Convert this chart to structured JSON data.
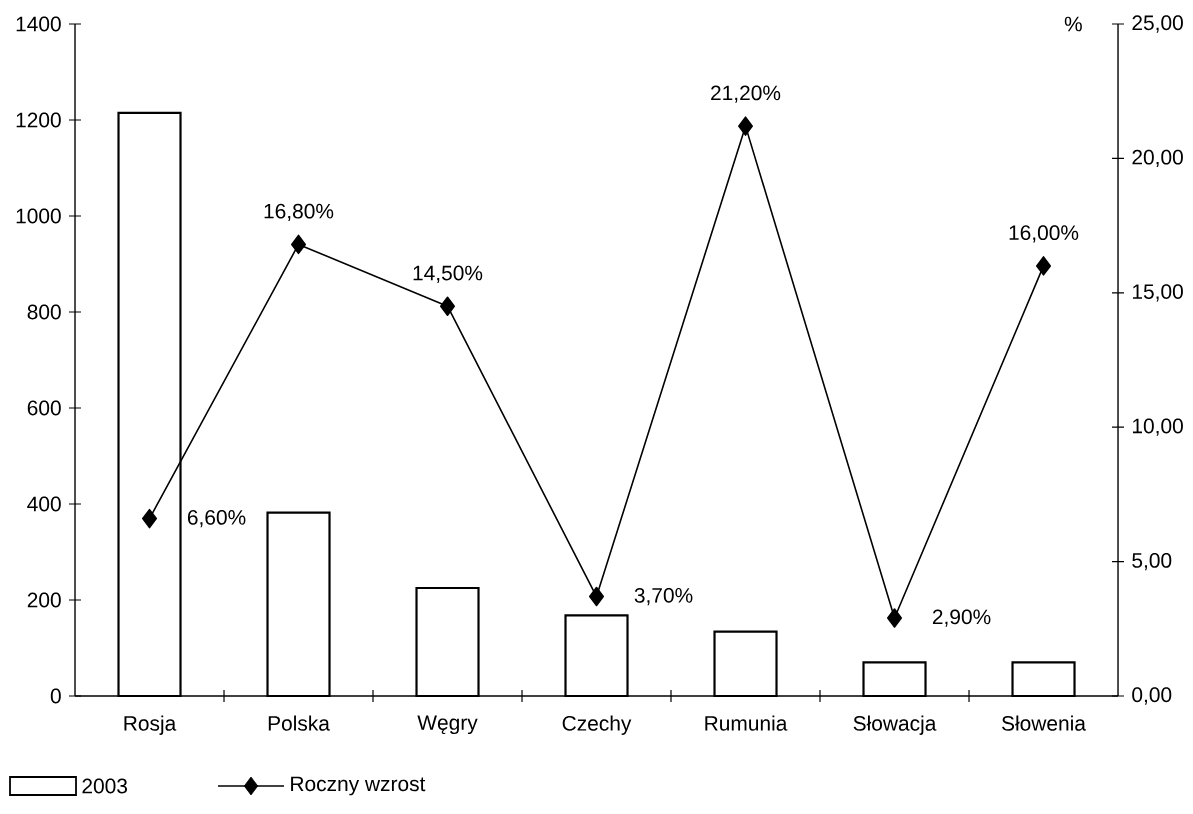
{
  "chart_data": {
    "type": "bar",
    "categories": [
      "Rosja",
      "Polska",
      "Węgry",
      "Czechy",
      "Rumunia",
      "Słowacja",
      "Słowenia"
    ],
    "series": [
      {
        "name": "2003",
        "color": "#ffffff",
        "values": [
          1215,
          382,
          225,
          168,
          134,
          70,
          70
        ]
      },
      {
        "name": "Roczny wzrost",
        "type": "line",
        "axis": "y2",
        "color": "#000000",
        "values": [
          6.6,
          16.8,
          14.5,
          3.7,
          21.2,
          2.9,
          16.0
        ],
        "value_labels": [
          "6,60%",
          "16,80%",
          "14,50%",
          "3,70%",
          "21,20%",
          "2,90%",
          "16,00%"
        ]
      }
    ],
    "ylim": [
      0,
      1400
    ],
    "yticks": [
      0,
      200,
      400,
      600,
      800,
      1000,
      1200,
      1400
    ],
    "y2lim": [
      0,
      25
    ],
    "y2ticks": [
      {
        "value": 0,
        "label": "0,00"
      },
      {
        "value": 5,
        "label": "5,00"
      },
      {
        "value": 10,
        "label": "10,00"
      },
      {
        "value": 15,
        "label": "15,00"
      },
      {
        "value": 20,
        "label": "20,00"
      },
      {
        "value": 25,
        "label": "25,00"
      }
    ],
    "y2label": "%",
    "marker": "diamond",
    "line_style": "solid",
    "legend": "bottom left",
    "grid": false
  }
}
